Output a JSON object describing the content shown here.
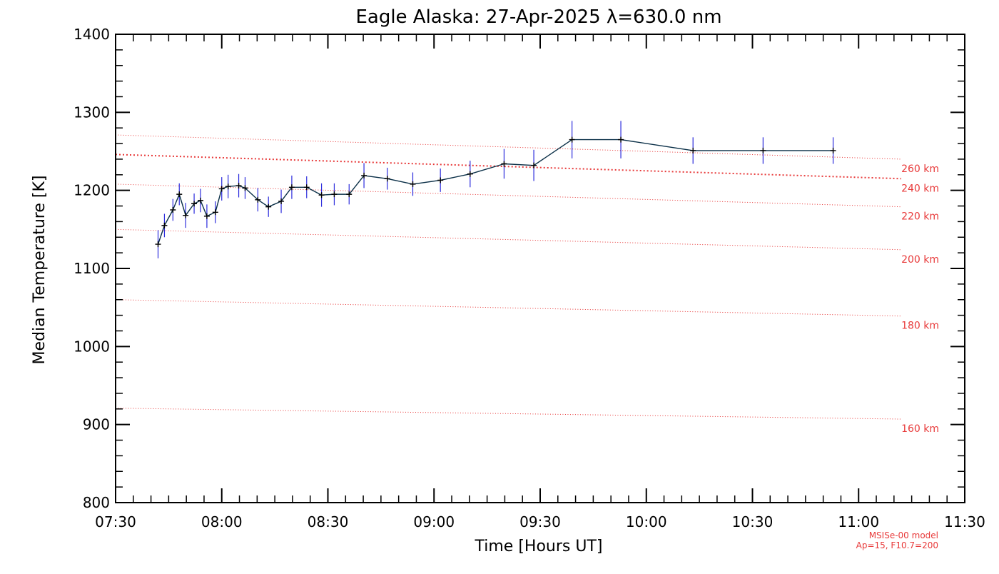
{
  "chart_data": {
    "type": "line",
    "title": "Eagle Alaska: 27-Apr-2025 λ=630.0 nm",
    "xlabel": "Time [Hours UT]",
    "ylabel": "Median Temperature [K]",
    "xlim": [
      7.5,
      11.5
    ],
    "ylim": [
      800,
      1400
    ],
    "x_ticks": [
      7.5,
      8.0,
      8.5,
      9.0,
      9.5,
      10.0,
      10.5,
      11.0,
      11.5
    ],
    "x_tick_labels": [
      "07:30",
      "08:00",
      "08:30",
      "09:00",
      "09:30",
      "10:00",
      "10:30",
      "11:00",
      "11:30"
    ],
    "y_ticks": [
      800,
      900,
      1000,
      1100,
      1200,
      1300,
      1400
    ],
    "y_tick_labels": [
      "800",
      "900",
      "1000",
      "1100",
      "1200",
      "1300",
      "1400"
    ],
    "series": [
      {
        "name": "Median Temperature",
        "color": "#0a2f47",
        "error_color": "#2b2bdc",
        "x": [
          7.7,
          7.73,
          7.77,
          7.8,
          7.83,
          7.87,
          7.9,
          7.93,
          7.97,
          8.0,
          8.03,
          8.08,
          8.11,
          8.17,
          8.22,
          8.28,
          8.33,
          8.4,
          8.47,
          8.53,
          8.6,
          8.67,
          8.78,
          8.9,
          9.03,
          9.17,
          9.33,
          9.47,
          9.65,
          9.88,
          10.22,
          10.55,
          10.88
        ],
        "y": [
          1131,
          1155,
          1175,
          1195,
          1168,
          1183,
          1187,
          1167,
          1172,
          1202,
          1205,
          1206,
          1203,
          1188,
          1179,
          1186,
          1204,
          1204,
          1194,
          1195,
          1195,
          1219,
          1215,
          1208,
          1213,
          1221,
          1234,
          1232,
          1265,
          1265,
          1251,
          1251,
          1251
        ],
        "error": [
          18,
          15,
          14,
          14,
          16,
          13,
          15,
          15,
          14,
          15,
          15,
          15,
          14,
          15,
          13,
          15,
          15,
          14,
          15,
          14,
          13,
          16,
          14,
          15,
          15,
          17,
          19,
          20,
          24,
          24,
          17,
          17,
          17
        ]
      }
    ],
    "model_curves": [
      {
        "label": "160 km",
        "t0": 921,
        "t1": 907
      },
      {
        "label": "180 km",
        "t0": 1060,
        "t1": 1039
      },
      {
        "label": "200 km",
        "t0": 1150,
        "t1": 1124
      },
      {
        "label": "220 km",
        "t0": 1208,
        "t1": 1179
      },
      {
        "label": "240 km",
        "t0": 1246,
        "t1": 1215
      },
      {
        "label": "260 km",
        "t0": 1271,
        "t1": 1240
      }
    ],
    "model_note_line1": "MSISe-00 model",
    "model_note_line2": "Ap=15, F10.7=200",
    "model_color": "#e83a3a"
  }
}
